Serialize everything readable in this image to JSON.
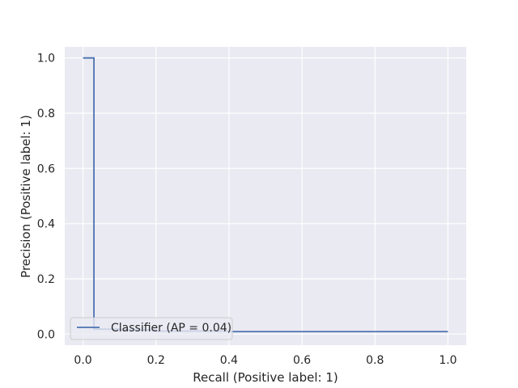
{
  "chart_data": {
    "type": "line",
    "title": "",
    "xlabel": "Recall (Positive label: 1)",
    "ylabel": "Precision (Positive label: 1)",
    "xlim": [
      -0.05,
      1.05
    ],
    "ylim": [
      -0.04,
      1.04
    ],
    "xticks": [
      "0.0",
      "0.2",
      "0.4",
      "0.6",
      "0.8",
      "1.0"
    ],
    "yticks": [
      "0.0",
      "0.2",
      "0.4",
      "0.6",
      "0.8",
      "1.0"
    ],
    "grid": true,
    "legend_position": "lower-left",
    "series": [
      {
        "name": "Classifier (AP = 0.04)",
        "color": "#4c72b0",
        "drawstyle": "steps-post",
        "points": [
          [
            1.0,
            0.009
          ],
          [
            0.5,
            0.009
          ],
          [
            0.4,
            0.011
          ],
          [
            0.2,
            0.015
          ],
          [
            0.1,
            0.018
          ],
          [
            0.03,
            0.015
          ],
          [
            0.03,
            1.0
          ],
          [
            0.0,
            1.0
          ]
        ]
      }
    ],
    "colors": {
      "plot_background": "#eaeaf2",
      "grid": "#ffffff",
      "text": "#262626",
      "legend_border": "#cccccc"
    }
  }
}
